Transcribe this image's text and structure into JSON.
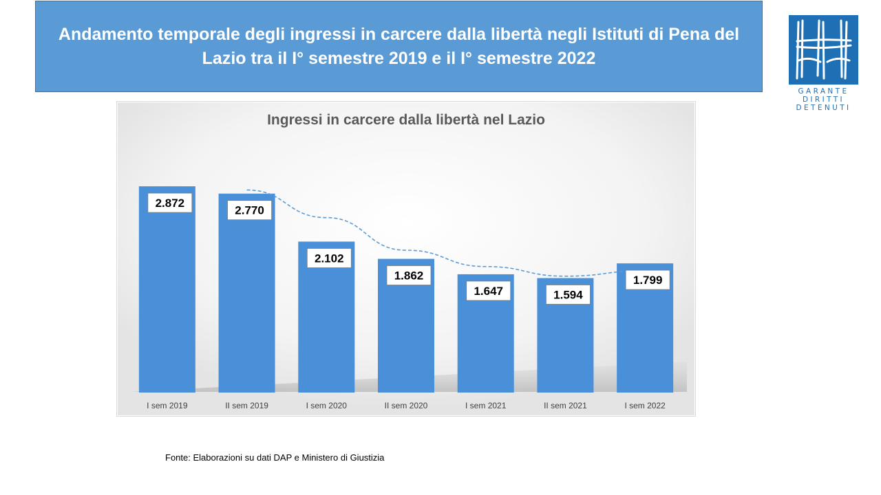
{
  "header": {
    "title": "Andamento temporale degli ingressi in carcere dalla libertà negli Istituti di Pena del Lazio tra il I° semestre 2019 e il I° semestre 2022"
  },
  "logo": {
    "lines": [
      "GARANTE",
      "DIRITTI",
      "DETENUTI"
    ],
    "color": "#1f6fb5"
  },
  "chart_data": {
    "type": "bar",
    "title": "Ingressi in carcere dalla libertà nel Lazio",
    "categories": [
      "I sem 2019",
      "II sem 2019",
      "I sem 2020",
      "II sem 2020",
      "I sem 2021",
      "II sem 2021",
      "I sem 2022"
    ],
    "values": [
      2872,
      2770,
      2102,
      1862,
      1647,
      1594,
      1799
    ],
    "data_labels": [
      "2.872",
      "2.770",
      "2.102",
      "1.862",
      "1.647",
      "1.594",
      "1.799"
    ],
    "trendline": "moving-average-dashed",
    "ylim": [
      0,
      2872
    ],
    "grid": false,
    "legend": "none",
    "bar_color": "#4a90d9",
    "trend_color": "#5b9bd5"
  },
  "footer": {
    "source": "Fonte:  Elaborazioni su dati DAP e Ministero di Giustizia"
  }
}
